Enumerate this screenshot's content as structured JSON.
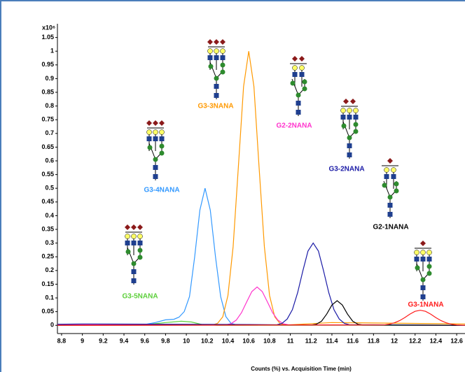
{
  "chart_data": {
    "type": "line",
    "y_multiplier": "x10⁶",
    "x_label": "Counts (%) vs. Acquisition Time (min)",
    "xlim": [
      8.76,
      12.68
    ],
    "ylim": [
      -0.03,
      1.1
    ],
    "xticks": [
      8.8,
      9,
      9.2,
      9.4,
      9.6,
      9.8,
      10,
      10.2,
      10.4,
      10.6,
      10.8,
      11,
      11.2,
      11.4,
      11.6,
      11.8,
      12,
      12.2,
      12.4,
      12.6
    ],
    "yticks": [
      0,
      0.05,
      0.1,
      0.15,
      0.2,
      0.25,
      0.3,
      0.35,
      0.4,
      0.45,
      0.5,
      0.55,
      0.6,
      0.65,
      0.7,
      0.75,
      0.8,
      0.85,
      0.9,
      0.95,
      1,
      1.05
    ],
    "series": [
      {
        "name": "G3-5NANA",
        "color": "#5ccf3a",
        "x": [
          8.76,
          9.6,
          9.8,
          9.95,
          10.05,
          10.15,
          10.3,
          12.68
        ],
        "values": [
          0,
          0.002,
          0.01,
          0.015,
          0.012,
          0.003,
          0,
          0
        ]
      },
      {
        "name": "G3-4NANA",
        "color": "#3399ff",
        "x": [
          8.76,
          9.6,
          9.7,
          9.8,
          9.88,
          9.93,
          9.98,
          10.03,
          10.08,
          10.13,
          10.18,
          10.23,
          10.28,
          10.33,
          10.38,
          10.43,
          10.48,
          12.68
        ],
        "values": [
          0,
          0.003,
          0.01,
          0.02,
          0.022,
          0.03,
          0.05,
          0.105,
          0.25,
          0.42,
          0.5,
          0.42,
          0.25,
          0.105,
          0.032,
          0.007,
          0.002,
          0
        ]
      },
      {
        "name": "G3-3NANA",
        "color": "#ff9900",
        "x": [
          8.76,
          10.25,
          10.3,
          10.35,
          10.4,
          10.45,
          10.5,
          10.55,
          10.6,
          10.65,
          10.7,
          10.75,
          10.8,
          10.85,
          10.9,
          10.95,
          11.4,
          12.68
        ],
        "values": [
          0,
          0.001,
          0.007,
          0.031,
          0.109,
          0.287,
          0.575,
          0.871,
          1,
          0.871,
          0.575,
          0.287,
          0.109,
          0.031,
          0.007,
          0.001,
          0.01,
          0.005
        ]
      },
      {
        "name": "G2-2NANA",
        "color": "#ff33cc",
        "x": [
          8.76,
          10.38,
          10.43,
          10.48,
          10.53,
          10.58,
          10.63,
          10.68,
          10.73,
          10.78,
          10.83,
          10.88,
          10.93,
          10.98,
          12.68
        ],
        "values": [
          0.003,
          0.002,
          0.006,
          0.019,
          0.046,
          0.085,
          0.123,
          0.14,
          0.123,
          0.085,
          0.046,
          0.019,
          0.006,
          0.002,
          0
        ]
      },
      {
        "name": "G3-2NANA",
        "color": "#1a1aa6",
        "x": [
          8.76,
          9,
          10.6,
          10.87,
          10.92,
          10.97,
          11.02,
          11.07,
          11.12,
          11.17,
          11.22,
          11.27,
          11.32,
          11.37,
          11.42,
          11.47,
          11.52,
          11.57,
          11.8,
          12.68
        ],
        "values": [
          0.004,
          0.005,
          0.003,
          0.002,
          0.007,
          0.023,
          0.057,
          0.119,
          0.198,
          0.271,
          0.3,
          0.271,
          0.198,
          0.119,
          0.057,
          0.023,
          0.007,
          0.002,
          0.002,
          0
        ]
      },
      {
        "name": "G2-1NANA",
        "color": "#000000",
        "x": [
          8.76,
          11.2,
          11.25,
          11.3,
          11.35,
          11.4,
          11.45,
          11.5,
          11.55,
          11.6,
          11.65,
          11.7,
          12.68
        ],
        "values": [
          0,
          0.001,
          0.004,
          0.015,
          0.041,
          0.074,
          0.09,
          0.074,
          0.041,
          0.015,
          0.004,
          0.001,
          0
        ]
      },
      {
        "name": "G3-1NANA",
        "color": "#ff1a1a",
        "x": [
          8.76,
          11.9,
          11.95,
          12,
          12.05,
          12.1,
          12.15,
          12.2,
          12.25,
          12.3,
          12.35,
          12.4,
          12.45,
          12.5,
          12.55,
          12.6,
          12.68
        ],
        "values": [
          0,
          0.0015,
          0.004,
          0.009,
          0.017,
          0.028,
          0.041,
          0.051,
          0.055,
          0.051,
          0.041,
          0.028,
          0.017,
          0.009,
          0.004,
          0.0015,
          0
        ]
      }
    ]
  }
}
